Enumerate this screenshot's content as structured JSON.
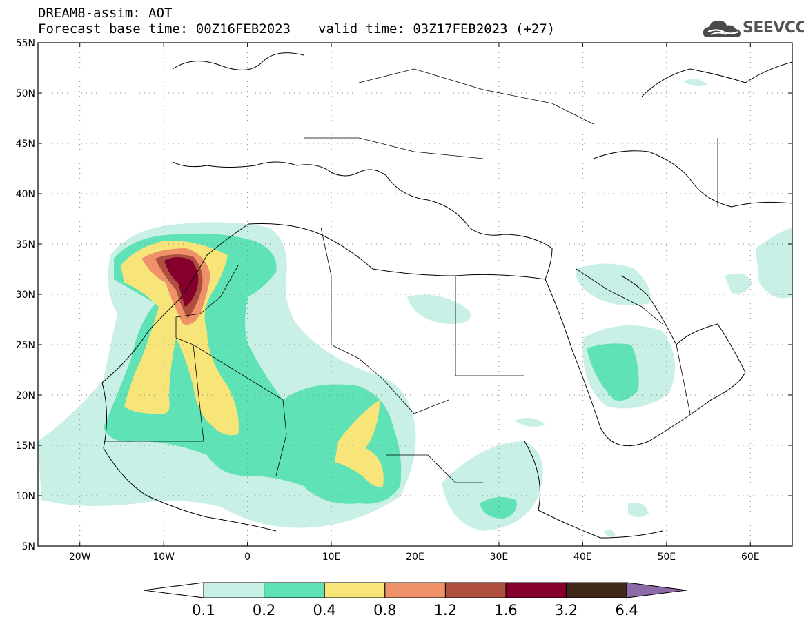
{
  "header": {
    "title_line1": "DREAM8-assim: AOT",
    "base_time": "Forecast base time: 00Z16FEB2023",
    "valid_time": "valid time: 03Z17FEB2023 (+27)"
  },
  "logo": {
    "text": "SEEVCCC",
    "icon": "cloud-icon"
  },
  "map": {
    "lon_range": [
      -25,
      65
    ],
    "lat_range": [
      5,
      55
    ],
    "lat_ticks": [
      "55N",
      "50N",
      "45N",
      "40N",
      "35N",
      "30N",
      "25N",
      "20N",
      "15N",
      "10N",
      "5N"
    ],
    "lon_ticks": [
      "20W",
      "10W",
      "0",
      "10E",
      "20E",
      "30E",
      "40E",
      "50E",
      "60E"
    ]
  },
  "colorbar": {
    "levels": [
      "0.1",
      "0.2",
      "0.4",
      "0.8",
      "1.2",
      "1.6",
      "3.2",
      "6.4"
    ],
    "colors": [
      "#ffffff",
      "#c9f0e6",
      "#5fe2b6",
      "#f7e57a",
      "#ef9269",
      "#ad4e3f",
      "#84002b",
      "#40291a",
      "#8b6aa8"
    ]
  }
}
